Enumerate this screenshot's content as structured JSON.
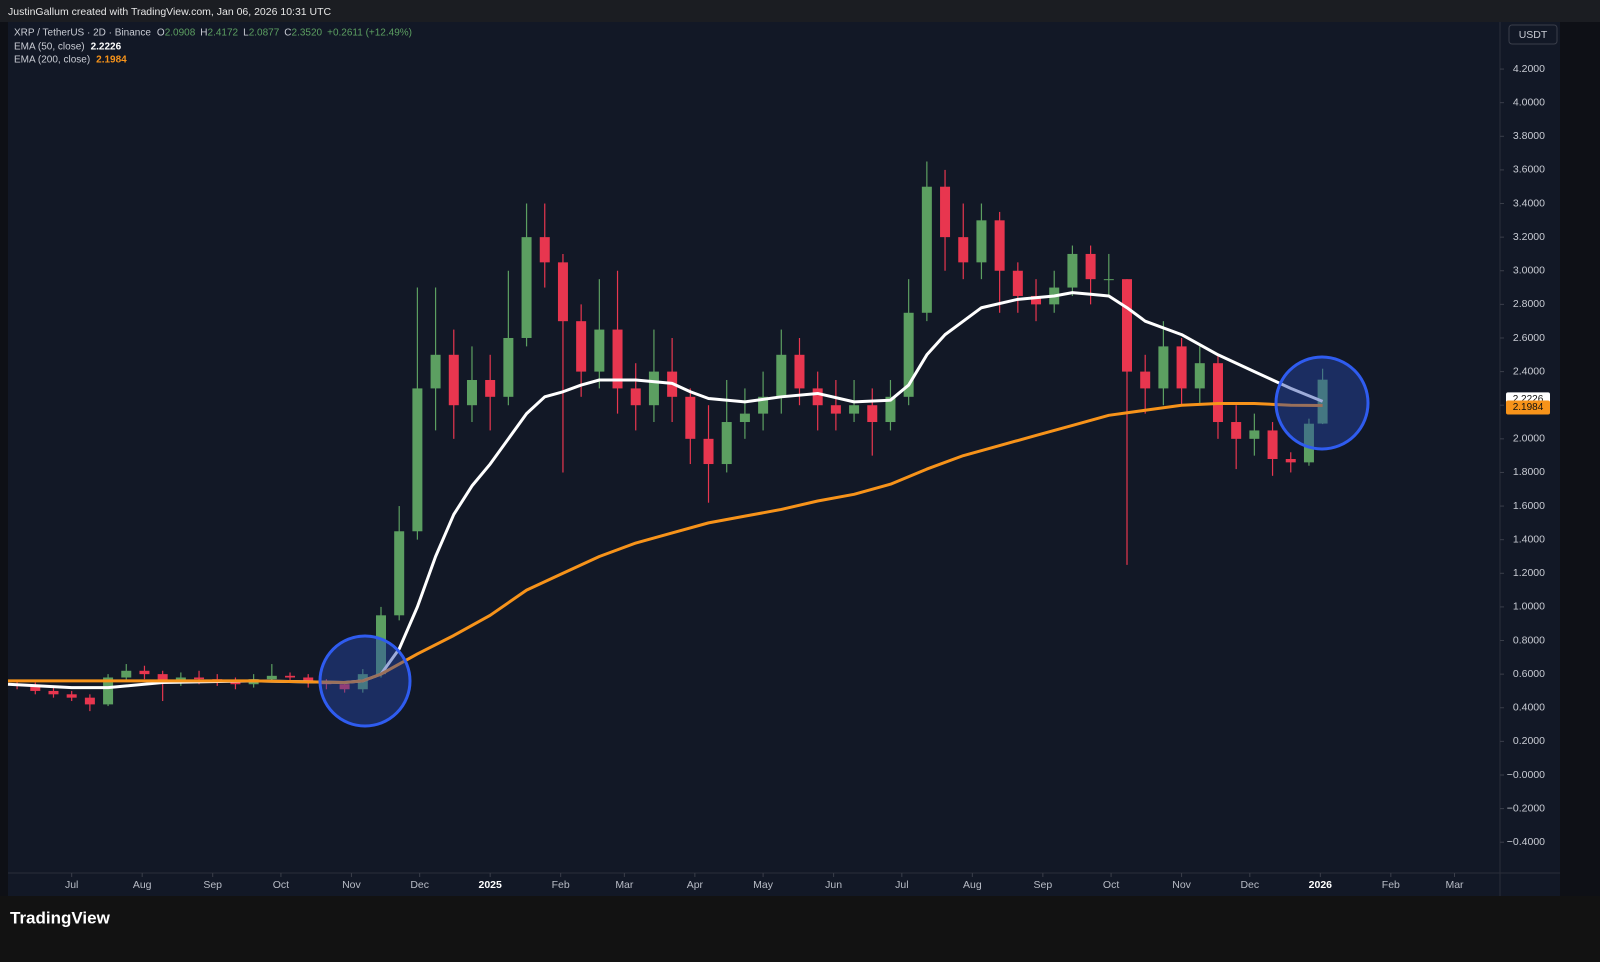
{
  "header": "JustinGallum created with TradingView.com, Jan 06, 2026 10:31 UTC",
  "brand": "TradingView",
  "chart_data": {
    "type": "candlestick",
    "title": "XRP / TetherUS · 2D · Binance",
    "currency": "USDT",
    "ohlc_legend": [
      {
        "label": "O",
        "value": "2.0908"
      },
      {
        "label": "H",
        "value": "2.4172"
      },
      {
        "label": "L",
        "value": "2.0877"
      },
      {
        "label": "C",
        "value": "2.3520"
      }
    ],
    "change": "+0.2611 (+12.49%)",
    "up_color": "#5c9f61",
    "down_color": "#e8364f",
    "xlim": [
      -28,
      628
    ],
    "ylim": [
      -0.72,
      4.48
    ],
    "xticks": [
      {
        "value": 0,
        "label": "Jul"
      },
      {
        "value": 31,
        "label": "Aug"
      },
      {
        "value": 62,
        "label": "Sep"
      },
      {
        "value": 92,
        "label": "Oct"
      },
      {
        "value": 123,
        "label": "Nov"
      },
      {
        "value": 153,
        "label": "Dec"
      },
      {
        "value": 184,
        "label": "2025"
      },
      {
        "value": 215,
        "label": "Feb"
      },
      {
        "value": 243,
        "label": "Mar"
      },
      {
        "value": 274,
        "label": "Apr"
      },
      {
        "value": 304,
        "label": "May"
      },
      {
        "value": 335,
        "label": "Jun"
      },
      {
        "value": 365,
        "label": "Jul"
      },
      {
        "value": 396,
        "label": "Aug"
      },
      {
        "value": 427,
        "label": "Sep"
      },
      {
        "value": 457,
        "label": "Oct"
      },
      {
        "value": 488,
        "label": "Nov"
      },
      {
        "value": 518,
        "label": "Dec"
      },
      {
        "value": 549,
        "label": "2026"
      },
      {
        "value": 580,
        "label": "Feb"
      },
      {
        "value": 608,
        "label": "Mar"
      }
    ],
    "yticks": [
      {
        "value": -0.4,
        "label": "−0.4000"
      },
      {
        "value": -0.2,
        "label": "−0.2000"
      },
      {
        "value": 0,
        "label": "−0.0000"
      },
      {
        "value": 0.2,
        "label": "0.2000"
      },
      {
        "value": 0.4,
        "label": "0.4000"
      },
      {
        "value": 0.6,
        "label": "0.6000"
      },
      {
        "value": 0.8,
        "label": "0.8000"
      },
      {
        "value": 1.0,
        "label": "1.0000"
      },
      {
        "value": 1.2,
        "label": "1.2000"
      },
      {
        "value": 1.4,
        "label": "1.4000"
      },
      {
        "value": 1.6,
        "label": "1.6000"
      },
      {
        "value": 1.8,
        "label": "1.8000"
      },
      {
        "value": 2.0,
        "label": "2.0000"
      },
      {
        "value": 2.2,
        "label": "2.2000"
      },
      {
        "value": 2.4,
        "label": "2.4000"
      },
      {
        "value": 2.6,
        "label": "2.6000"
      },
      {
        "value": 2.8,
        "label": "2.8000"
      },
      {
        "value": 3.0,
        "label": "3.0000"
      },
      {
        "value": 3.2,
        "label": "3.2000"
      },
      {
        "value": 3.4,
        "label": "3.4000"
      },
      {
        "value": 3.6,
        "label": "3.6000"
      },
      {
        "value": 3.8,
        "label": "3.8000"
      },
      {
        "value": 4.0,
        "label": "4.0000"
      },
      {
        "value": 4.2,
        "label": "4.2000"
      }
    ],
    "x": [
      -24,
      -16,
      -8,
      0,
      8,
      16,
      24,
      32,
      40,
      48,
      56,
      64,
      72,
      80,
      88,
      96,
      104,
      112,
      120,
      128,
      136,
      144,
      152,
      160,
      168,
      176,
      184,
      192,
      200,
      208,
      216,
      224,
      232,
      240,
      248,
      256,
      264,
      272,
      280,
      288,
      296,
      304,
      312,
      320,
      328,
      336,
      344,
      352,
      360,
      368,
      376,
      384,
      392,
      400,
      408,
      416,
      424,
      432,
      440,
      448,
      456,
      464,
      472,
      480,
      488,
      496,
      504,
      512,
      520,
      528,
      536,
      544,
      550
    ],
    "open": [
      0.54,
      0.53,
      0.5,
      0.48,
      0.46,
      0.42,
      0.58,
      0.62,
      0.6,
      0.55,
      0.58,
      0.57,
      0.56,
      0.54,
      0.57,
      0.59,
      0.58,
      0.55,
      0.54,
      0.51,
      0.6,
      0.95,
      1.45,
      2.3,
      2.5,
      2.2,
      2.35,
      2.25,
      2.6,
      3.2,
      3.05,
      2.7,
      2.4,
      2.65,
      2.3,
      2.2,
      2.4,
      2.25,
      2.0,
      1.85,
      2.1,
      2.15,
      2.25,
      2.5,
      2.3,
      2.2,
      2.15,
      2.2,
      2.1,
      2.25,
      2.75,
      3.5,
      3.2,
      3.05,
      3.3,
      3.0,
      2.85,
      2.8,
      2.9,
      3.1,
      2.95,
      2.95,
      2.4,
      2.3,
      2.55,
      2.3,
      2.45,
      2.1,
      2.0,
      2.05,
      1.88,
      1.86,
      2.0908
    ],
    "high": [
      0.56,
      0.55,
      0.52,
      0.5,
      0.48,
      0.6,
      0.66,
      0.65,
      0.62,
      0.61,
      0.62,
      0.6,
      0.58,
      0.6,
      0.66,
      0.61,
      0.6,
      0.57,
      0.56,
      0.63,
      1.0,
      1.6,
      2.9,
      2.9,
      2.65,
      2.55,
      2.5,
      3.0,
      3.4,
      3.4,
      3.1,
      2.8,
      2.95,
      3.0,
      2.45,
      2.65,
      2.6,
      2.3,
      2.2,
      2.35,
      2.3,
      2.4,
      2.65,
      2.6,
      2.4,
      2.35,
      2.35,
      2.3,
      2.35,
      2.95,
      3.65,
      3.6,
      3.4,
      3.4,
      3.35,
      3.05,
      2.95,
      3.0,
      3.15,
      3.15,
      3.1,
      2.95,
      2.5,
      2.7,
      2.6,
      2.55,
      2.5,
      2.2,
      2.15,
      2.1,
      1.92,
      2.12,
      2.4172
    ],
    "low": [
      0.51,
      0.48,
      0.46,
      0.44,
      0.38,
      0.41,
      0.56,
      0.57,
      0.44,
      0.53,
      0.54,
      0.53,
      0.51,
      0.52,
      0.55,
      0.55,
      0.52,
      0.51,
      0.49,
      0.49,
      0.58,
      0.92,
      1.4,
      2.05,
      2.0,
      2.1,
      2.05,
      2.2,
      2.55,
      2.9,
      1.8,
      2.25,
      2.3,
      2.15,
      2.05,
      2.1,
      2.1,
      1.85,
      1.62,
      1.8,
      2.0,
      2.05,
      2.15,
      2.2,
      2.05,
      2.05,
      2.1,
      1.9,
      2.05,
      2.2,
      2.7,
      3.0,
      2.95,
      2.95,
      2.75,
      2.75,
      2.7,
      2.75,
      2.85,
      2.8,
      2.85,
      1.25,
      2.15,
      2.2,
      2.2,
      2.2,
      2.0,
      1.82,
      1.9,
      1.78,
      1.8,
      1.84,
      2.0877
    ],
    "close": [
      0.53,
      0.5,
      0.48,
      0.46,
      0.42,
      0.58,
      0.62,
      0.6,
      0.55,
      0.58,
      0.57,
      0.56,
      0.54,
      0.57,
      0.59,
      0.58,
      0.55,
      0.54,
      0.51,
      0.6,
      0.95,
      1.45,
      2.3,
      2.5,
      2.2,
      2.35,
      2.25,
      2.6,
      3.2,
      3.05,
      2.7,
      2.4,
      2.65,
      2.3,
      2.2,
      2.4,
      2.25,
      2.0,
      1.85,
      2.1,
      2.15,
      2.25,
      2.5,
      2.3,
      2.2,
      2.15,
      2.2,
      2.1,
      2.25,
      2.75,
      3.5,
      3.2,
      3.05,
      3.3,
      3.0,
      2.85,
      2.8,
      2.9,
      3.1,
      2.95,
      2.95,
      2.4,
      2.3,
      2.55,
      2.3,
      2.45,
      2.1,
      2.0,
      2.05,
      1.88,
      1.86,
      2.09,
      2.352
    ],
    "series": [
      {
        "name": "EMA (50, close)",
        "color": "#ffffff",
        "value": 2.2226,
        "x": [
          -28,
          0,
          16,
          40,
          80,
          120,
          128,
          136,
          144,
          152,
          160,
          168,
          176,
          184,
          192,
          200,
          208,
          216,
          224,
          232,
          248,
          264,
          272,
          280,
          296,
          312,
          328,
          344,
          360,
          368,
          376,
          384,
          392,
          400,
          416,
          432,
          440,
          448,
          456,
          464,
          472,
          488,
          504,
          520,
          536,
          550
        ],
        "values": [
          0.54,
          0.52,
          0.52,
          0.55,
          0.56,
          0.55,
          0.56,
          0.6,
          0.75,
          1.0,
          1.3,
          1.55,
          1.72,
          1.85,
          2.0,
          2.15,
          2.25,
          2.28,
          2.32,
          2.35,
          2.35,
          2.33,
          2.28,
          2.24,
          2.22,
          2.25,
          2.27,
          2.22,
          2.23,
          2.32,
          2.5,
          2.62,
          2.7,
          2.78,
          2.83,
          2.85,
          2.87,
          2.86,
          2.85,
          2.78,
          2.7,
          2.62,
          2.5,
          2.4,
          2.3,
          2.2226
        ]
      },
      {
        "name": "EMA (200, close)",
        "color": "#f7931a",
        "value": 2.1984,
        "x": [
          -28,
          40,
          80,
          120,
          128,
          136,
          152,
          168,
          184,
          200,
          216,
          232,
          248,
          264,
          280,
          296,
          312,
          328,
          344,
          360,
          376,
          392,
          408,
          424,
          440,
          456,
          472,
          488,
          504,
          520,
          536,
          550
        ],
        "values": [
          0.56,
          0.56,
          0.56,
          0.55,
          0.56,
          0.6,
          0.72,
          0.83,
          0.95,
          1.1,
          1.2,
          1.3,
          1.38,
          1.44,
          1.5,
          1.54,
          1.58,
          1.63,
          1.67,
          1.73,
          1.82,
          1.9,
          1.96,
          2.02,
          2.08,
          2.14,
          2.17,
          2.2,
          2.21,
          2.21,
          2.2,
          2.1984
        ]
      }
    ]
  }
}
